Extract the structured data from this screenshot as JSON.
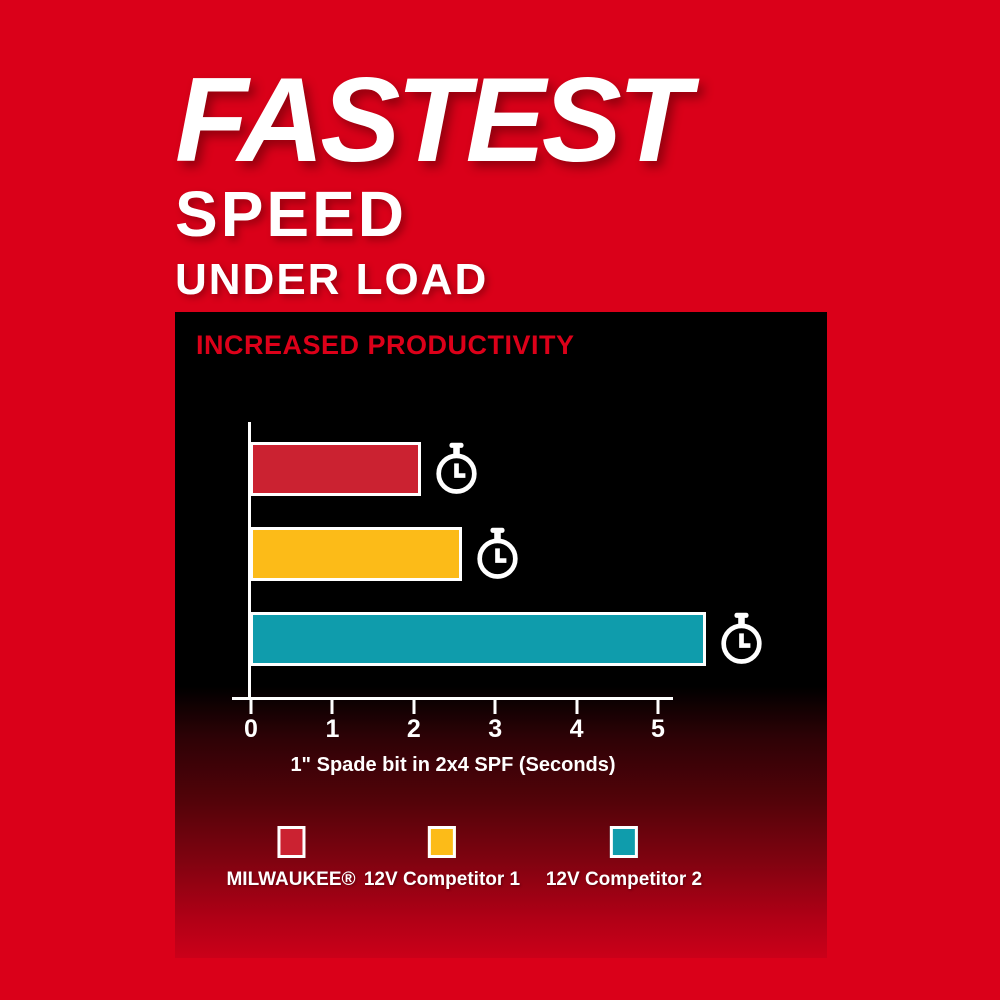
{
  "colors": {
    "background": "#DA0019",
    "heading_red": "#DC0019",
    "bar_red": "#CB2231",
    "bar_yellow": "#FCBB18",
    "bar_teal": "#0F9CAC",
    "axis_white": "#FFFFFF"
  },
  "title": {
    "line1": "FASTEST",
    "line2": "SPEED",
    "line3": "UNDER LOAD"
  },
  "panel": {
    "heading": "INCREASED PRODUCTIVITY"
  },
  "chart_data": {
    "type": "bar",
    "orientation": "horizontal",
    "title": "INCREASED PRODUCTIVITY",
    "categories": [
      "MILWAUKEE®",
      "12V Competitor 1",
      "12V Competitor 2"
    ],
    "values": [
      2.1,
      2.6,
      5.6
    ],
    "bar_colors": [
      "#CB2231",
      "#FCBB18",
      "#0F9CAC"
    ],
    "unit": "seconds",
    "xlabel": "1\" Spade bit in 2x4 SPF (Seconds)",
    "x_ticks": [
      "0",
      "1",
      "2",
      "3",
      "4",
      "5"
    ],
    "xlim": [
      0,
      5.6
    ],
    "grid": false,
    "legend_position": "bottom",
    "bar_icon": "stopwatch"
  },
  "legend": {
    "items": [
      {
        "label": "MILWAUKEE®",
        "color": "#CB2231"
      },
      {
        "label": "12V Competitor 1",
        "color": "#FCBB18"
      },
      {
        "label": "12V Competitor 2",
        "color": "#0F9CAC"
      }
    ]
  }
}
